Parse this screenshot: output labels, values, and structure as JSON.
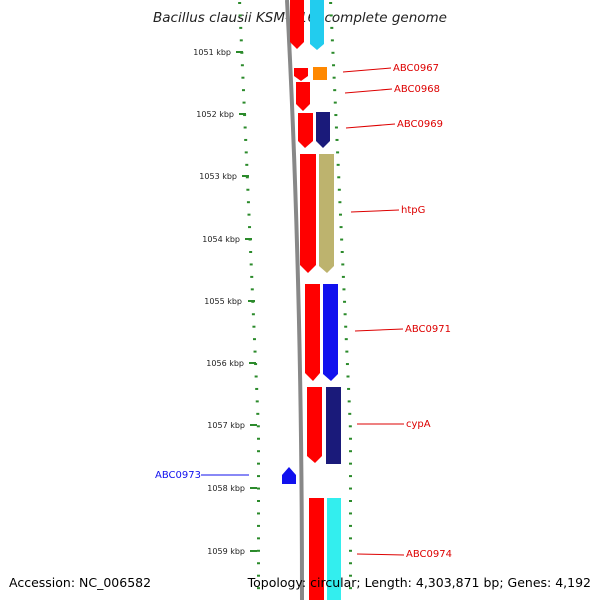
{
  "title": "Bacillus clausii KSM-K16, complete genome",
  "footer": {
    "accession": "Accession: NC_006582",
    "topology": "Topology: circular; Length: 4,303,871 bp; Genes: 4,192"
  },
  "colors": {
    "backbone": "#888888",
    "label_red": "#dd0000",
    "tick_green": "#2b8a2b",
    "cds_red": "#ff0000",
    "cyan": "#22ccee",
    "orange": "#ff8800",
    "navy": "#1a1a7a",
    "olive": "#bdb36e",
    "blue": "#1111ee",
    "light_cyan": "#33eeee"
  },
  "ruler_labels": [
    "1051 kbp",
    "1052 kbp",
    "1053 kbp",
    "1054 kbp",
    "1055 kbp",
    "1056 kbp",
    "1057 kbp",
    "1058 kbp",
    "1059 kbp"
  ],
  "gene_labels": [
    "ABC0967",
    "ABC0968",
    "ABC0969",
    "htpG",
    "ABC0971",
    "cypA",
    "ABC0973",
    "ABC0974"
  ]
}
